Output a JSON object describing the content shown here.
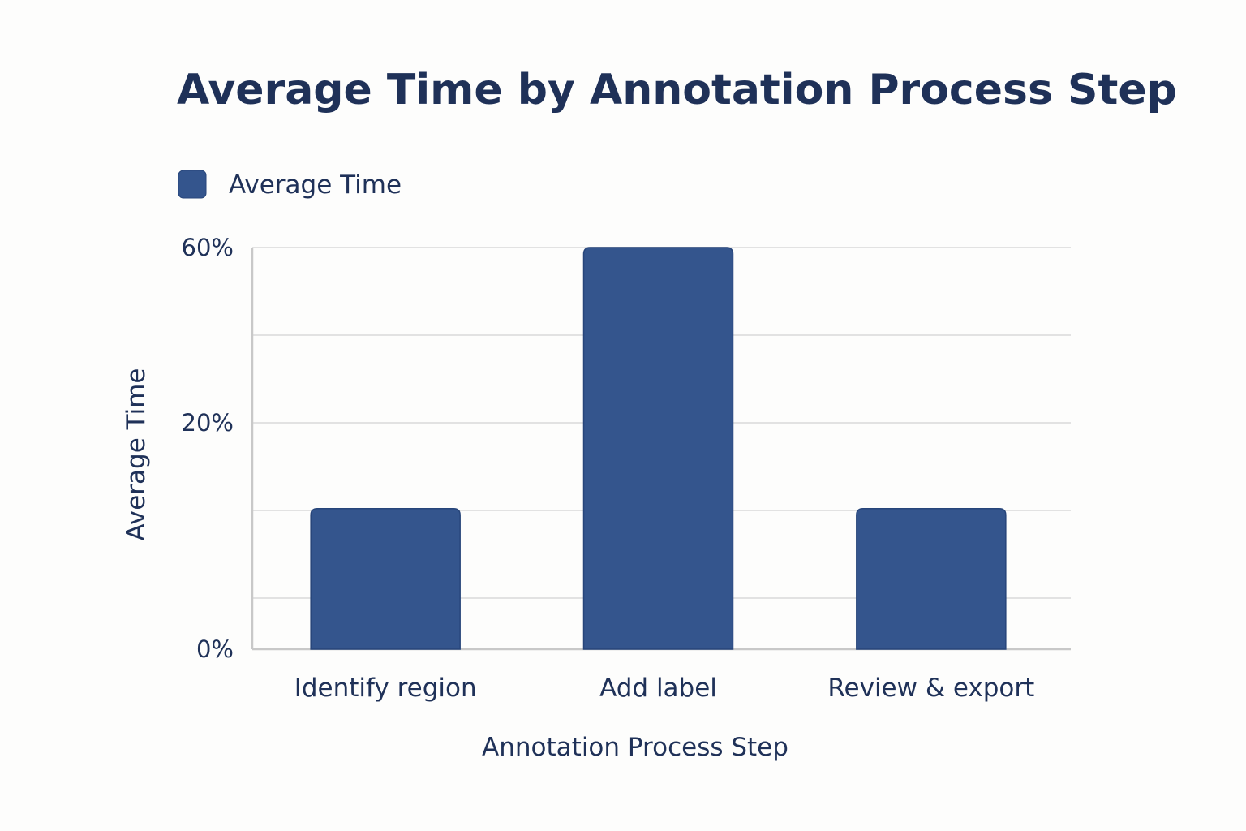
{
  "chart_data": {
    "type": "bar",
    "title": "Average Time by Annotation Process Step",
    "xlabel": "Annotation Process Step",
    "ylabel": "Average Time",
    "categories": [
      "Identify region",
      "Add label",
      "Review & export"
    ],
    "series": [
      {
        "name": "Average Time",
        "values": [
          21,
          60,
          21
        ]
      }
    ],
    "y_ticks": [
      {
        "value": 0,
        "label": "0%"
      },
      {
        "value": 20,
        "label": "20%"
      },
      {
        "value": 60,
        "label": "60%"
      }
    ],
    "ylim": [
      0,
      60
    ],
    "grid": true,
    "legend": "top-left",
    "colors": {
      "bar": "#34558d",
      "bar_edge": "#27457a",
      "grid": "#e2e2e2",
      "axis": "#c8c8c8",
      "text": "#1f3158"
    }
  }
}
